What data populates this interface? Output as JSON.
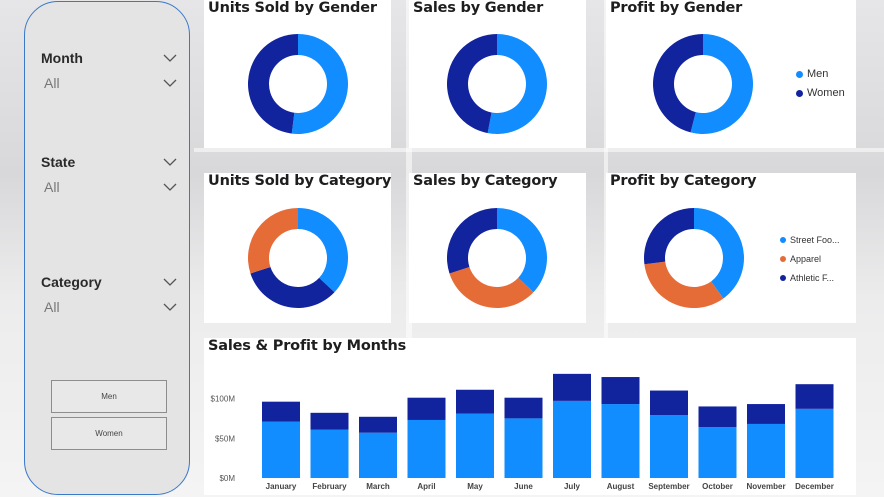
{
  "colors": {
    "blue": "#118dff",
    "navy": "#12239e",
    "orange": "#e66c37"
  },
  "slicers": [
    {
      "label": "Month",
      "value": "All",
      "icon": "chevron-down-icon"
    },
    {
      "label": "State",
      "value": "All",
      "icon": "chevron-down-icon"
    },
    {
      "label": "Category",
      "value": "All",
      "icon": "chevron-down-icon"
    }
  ],
  "buttons": {
    "men": "Men",
    "women": "Women"
  },
  "cards": {
    "units_gender": "Units Sold by Gender",
    "sales_gender": "Sales by Gender",
    "profit_gender": "Profit by Gender",
    "units_category": "Units Sold by Category",
    "sales_category": "Sales by Category",
    "profit_category": "Profit by Category"
  },
  "legend_gender": [
    "Men",
    "Women"
  ],
  "legend_category": [
    "Street Foo...",
    "Apparel",
    "Athletic F..."
  ],
  "chart_data": [
    {
      "type": "pie",
      "title": "Units Sold by Gender",
      "labels": [
        "Men",
        "Women"
      ],
      "values": [
        52,
        48
      ]
    },
    {
      "type": "pie",
      "title": "Sales by Gender",
      "labels": [
        "Men",
        "Women"
      ],
      "values": [
        53,
        47
      ]
    },
    {
      "type": "pie",
      "title": "Profit by Gender",
      "labels": [
        "Men",
        "Women"
      ],
      "values": [
        54,
        46
      ]
    },
    {
      "type": "pie",
      "title": "Units Sold by Category",
      "labels": [
        "Street Footwear",
        "Athletic Footwear",
        "Apparel"
      ],
      "values": [
        37,
        33,
        30
      ]
    },
    {
      "type": "pie",
      "title": "Sales by Category",
      "labels": [
        "Street Footwear",
        "Apparel",
        "Athletic Footwear"
      ],
      "values": [
        37,
        33,
        30
      ]
    },
    {
      "type": "pie",
      "title": "Profit by Category",
      "labels": [
        "Street Footwear",
        "Apparel",
        "Athletic Footwear"
      ],
      "values": [
        40,
        33,
        27
      ]
    },
    {
      "type": "bar",
      "title": "Sales & Profit by Months",
      "categories": [
        "January",
        "February",
        "March",
        "April",
        "May",
        "June",
        "July",
        "August",
        "September",
        "October",
        "November",
        "December"
      ],
      "series": [
        {
          "name": "Sales",
          "values": [
            71,
            61,
            57,
            73,
            81,
            75,
            97,
            93,
            79,
            64,
            68,
            87
          ]
        },
        {
          "name": "Profit",
          "values": [
            25,
            21,
            20,
            28,
            30,
            26,
            34,
            34,
            31,
            26,
            25,
            31
          ]
        }
      ],
      "yticks": [
        "$0M",
        "$50M",
        "$100M"
      ],
      "ylim": [
        0,
        120
      ]
    }
  ]
}
